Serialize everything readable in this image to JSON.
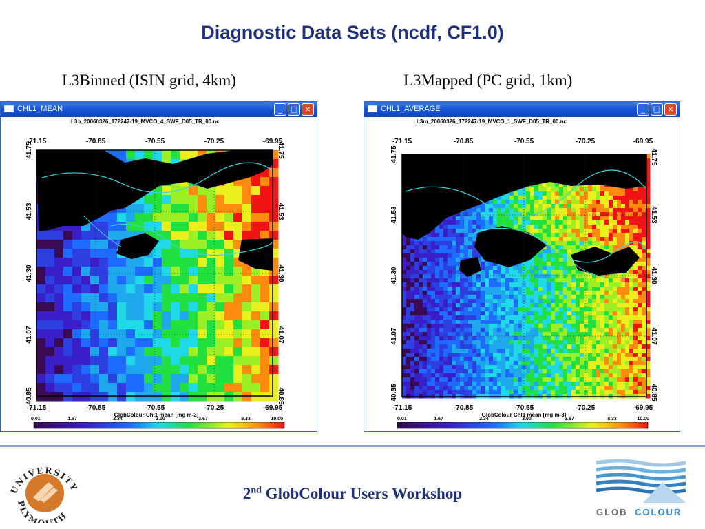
{
  "slide": {
    "title": "Diagnostic Data Sets (ncdf, CF1.0)",
    "footer_number": "2",
    "footer_superscript": "nd",
    "footer_text": "GlobColour Users Workshop"
  },
  "left_panel": {
    "heading": "L3Binned (ISIN grid, 4km)",
    "window_title": "CHL1_MEAN",
    "file_name": "L3b_20060326_172247-19_MVCO_4_SWF_D05_TR_00.nc",
    "x_ticks": [
      "-71.15",
      "-70.85",
      "-70.55",
      "-70.25",
      "-69.95"
    ],
    "y_ticks": [
      "41.75",
      "41.53",
      "41.30",
      "41.07",
      "40.85"
    ],
    "colorbar_label": "GlobColour Chl1 mean [mg m-3]",
    "colorbar_ticks": [
      "0.01",
      "1.67",
      "2.34",
      "3.00",
      "3.67",
      "8.33",
      "10.00"
    ]
  },
  "right_panel": {
    "heading": "L3Mapped (PC grid, 1km)",
    "window_title": "CHL1_AVERAGE",
    "file_name": "L3m_20060326_172247-19_MVCO_1_SWF_D05_TR_00.nc",
    "x_ticks": [
      "-71.15",
      "-70.85",
      "-70.55",
      "-70.25",
      "-69.95"
    ],
    "y_ticks": [
      "41.75",
      "41.53",
      "41.30",
      "41.07",
      "40.85"
    ],
    "colorbar_label": "GlobColour Chl1 mean [mg m-3]",
    "colorbar_ticks": [
      "0.01",
      "1.67",
      "2.34",
      "3.00",
      "3.67",
      "8.33",
      "10.00"
    ]
  },
  "window_controls": {
    "minimize": "_",
    "maximize": "□",
    "close": "×"
  },
  "logos": {
    "left_arc_top": "UNIVERSITY",
    "left_arc_bottom": "PLYMOUTH",
    "right_word_a": "GLOB",
    "right_word_b": "COLOUR"
  },
  "colors": {
    "title": "#1f2f7a",
    "window_bar": "#1756d6",
    "land": "#000000",
    "coast": "#38d6e0"
  }
}
